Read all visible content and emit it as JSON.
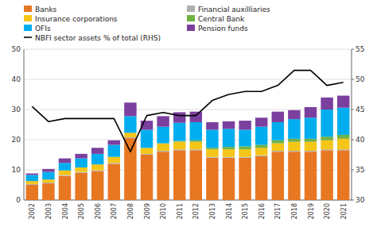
{
  "chart_data": {
    "type": "bar",
    "stacked": true,
    "grid": true,
    "legend": "upper left",
    "categories": [
      "2002",
      "2003",
      "2004",
      "2005",
      "2006",
      "2007",
      "2008",
      "2009",
      "2010",
      "2011",
      "2012",
      "2013",
      "2014",
      "2015",
      "2016",
      "2017",
      "2018",
      "2019",
      "2020",
      "2021"
    ],
    "series": [
      {
        "name": "Banks",
        "color": "#E87722",
        "values": [
          5.0,
          5.5,
          8.0,
          9.0,
          9.5,
          12.0,
          20.5,
          15.0,
          16.0,
          16.5,
          16.5,
          14.0,
          14.0,
          14.0,
          14.5,
          16.0,
          16.0,
          16.0,
          16.5,
          16.5
        ]
      },
      {
        "name": "Financial auxilliaries",
        "color": "#B0B0B0",
        "values": [
          0.3,
          0.3,
          0.3,
          0.3,
          0.3,
          0.3,
          0.3,
          0.3,
          0.3,
          0.3,
          0.3,
          0.3,
          0.3,
          0.3,
          0.3,
          0.3,
          0.3,
          0.3,
          0.3,
          0.3
        ]
      },
      {
        "name": "Insurance corporations",
        "color": "#F5C518",
        "values": [
          1.0,
          1.0,
          1.5,
          1.5,
          2.0,
          2.0,
          1.5,
          2.0,
          2.5,
          2.5,
          2.5,
          2.5,
          2.5,
          2.5,
          2.5,
          2.5,
          3.0,
          3.0,
          3.0,
          3.5
        ]
      },
      {
        "name": "Central Bank",
        "color": "#70B244",
        "values": [
          0.0,
          0.0,
          0.0,
          0.0,
          0.0,
          0.0,
          0.0,
          0.0,
          0.0,
          0.3,
          0.5,
          0.5,
          0.8,
          1.0,
          1.0,
          1.0,
          1.0,
          1.0,
          1.2,
          1.3
        ]
      },
      {
        "name": "OFIs",
        "color": "#00AEEF",
        "values": [
          2.0,
          2.5,
          2.5,
          3.0,
          3.5,
          4.0,
          5.5,
          6.0,
          5.5,
          6.0,
          6.0,
          6.0,
          6.0,
          5.5,
          6.0,
          6.0,
          6.5,
          7.0,
          9.0,
          9.0
        ]
      },
      {
        "name": "Pension funds",
        "color": "#7B3F9E",
        "values": [
          0.5,
          1.0,
          1.5,
          1.5,
          2.0,
          1.5,
          4.5,
          3.0,
          3.5,
          3.5,
          3.5,
          2.5,
          2.5,
          3.0,
          3.0,
          3.5,
          3.0,
          3.5,
          4.0,
          4.0
        ]
      },
      {
        "name": "NBFI sector assets % of total (RHS)",
        "type": "line",
        "axis": "y2",
        "color": "#000000",
        "values": [
          45.5,
          43.0,
          43.5,
          43.5,
          43.5,
          43.5,
          38.0,
          44.0,
          44.5,
          44.0,
          44.0,
          46.5,
          47.5,
          48.0,
          48.0,
          49.0,
          51.5,
          51.5,
          49.0,
          49.5
        ]
      }
    ],
    "ylim": [
      0,
      50
    ],
    "yticks": [
      0,
      10,
      20,
      30,
      40,
      50
    ],
    "y2lim": [
      30,
      55
    ],
    "y2ticks": [
      30,
      35,
      40,
      45,
      50,
      55
    ]
  }
}
